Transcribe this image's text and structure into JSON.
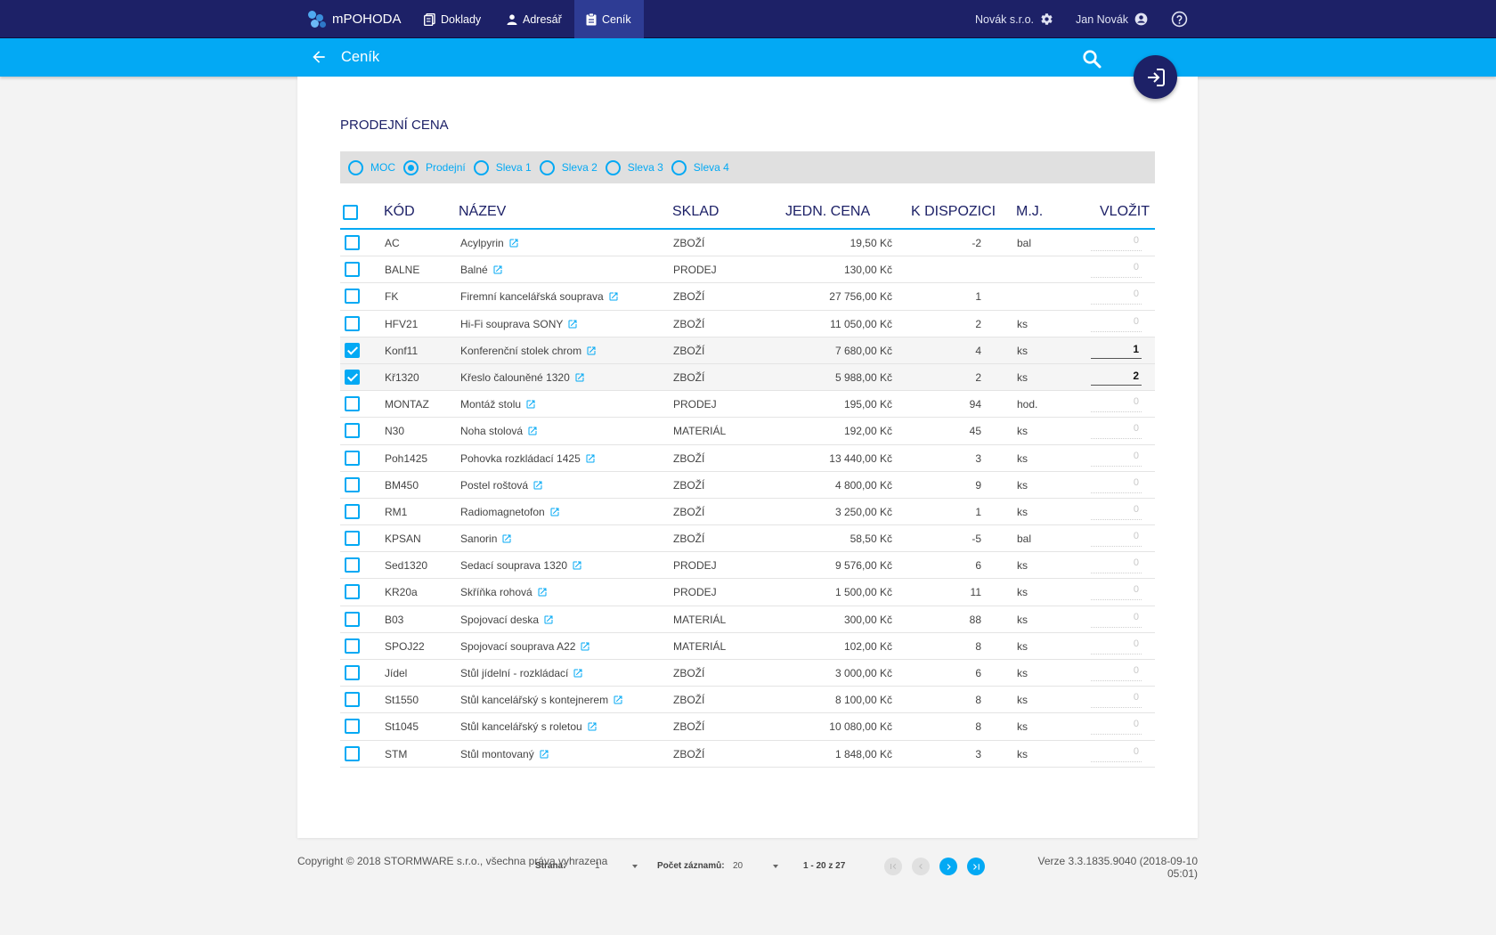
{
  "app": {
    "brand": "mPOHODA",
    "nav": [
      {
        "label": "Doklady",
        "icon": "documents-icon",
        "active": false
      },
      {
        "label": "Adresář",
        "icon": "person-icon",
        "active": false
      },
      {
        "label": "Ceník",
        "icon": "clipboard-icon",
        "active": true
      }
    ],
    "company": "Novák s.r.o.",
    "user": "Jan Novák"
  },
  "subheader": {
    "title": "Ceník"
  },
  "section_title": "PRODEJNÍ CENA",
  "price_types": [
    {
      "label": "MOC",
      "selected": false
    },
    {
      "label": "Prodejní",
      "selected": true
    },
    {
      "label": "Sleva 1",
      "selected": false
    },
    {
      "label": "Sleva 2",
      "selected": false
    },
    {
      "label": "Sleva 3",
      "selected": false
    },
    {
      "label": "Sleva 4",
      "selected": false
    }
  ],
  "table": {
    "headers": {
      "code": "KÓD",
      "name": "NÁZEV",
      "store": "SKLAD",
      "price": "JEDN. CENA",
      "available": "K DISPOZICI",
      "unit": "M.J.",
      "insert": "VLOŽIT"
    },
    "rows": [
      {
        "checked": false,
        "code": "AC",
        "name": "Acylpyrin",
        "store": "ZBOŽÍ",
        "price": "19,50 Kč",
        "available": "-2",
        "unit": "bal",
        "qty": "0"
      },
      {
        "checked": false,
        "code": "BALNE",
        "name": "Balné",
        "store": "PRODEJ",
        "price": "130,00 Kč",
        "available": "",
        "unit": "",
        "qty": "0"
      },
      {
        "checked": false,
        "code": "FK",
        "name": "Firemní kancelářská souprava",
        "store": "ZBOŽÍ",
        "price": "27 756,00 Kč",
        "available": "1",
        "unit": "",
        "qty": "0"
      },
      {
        "checked": false,
        "code": "HFV21",
        "name": "Hi-Fi souprava SONY",
        "store": "ZBOŽÍ",
        "price": "11 050,00 Kč",
        "available": "2",
        "unit": "ks",
        "qty": "0"
      },
      {
        "checked": true,
        "code": "Konf11",
        "name": "Konferenční stolek chrom",
        "store": "ZBOŽÍ",
        "price": "7 680,00 Kč",
        "available": "4",
        "unit": "ks",
        "qty": "1"
      },
      {
        "checked": true,
        "code": "Kř1320",
        "name": "Křeslo čalouněné 1320",
        "store": "ZBOŽÍ",
        "price": "5 988,00 Kč",
        "available": "2",
        "unit": "ks",
        "qty": "2"
      },
      {
        "checked": false,
        "code": "MONTAZ",
        "name": "Montáž stolu",
        "store": "PRODEJ",
        "price": "195,00 Kč",
        "available": "94",
        "unit": "hod.",
        "qty": "0"
      },
      {
        "checked": false,
        "code": "N30",
        "name": "Noha stolová",
        "store": "MATERIÁL",
        "price": "192,00 Kč",
        "available": "45",
        "unit": "ks",
        "qty": "0"
      },
      {
        "checked": false,
        "code": "Poh1425",
        "name": "Pohovka rozkládací 1425",
        "store": "ZBOŽÍ",
        "price": "13 440,00 Kč",
        "available": "3",
        "unit": "ks",
        "qty": "0"
      },
      {
        "checked": false,
        "code": "BM450",
        "name": "Postel roštová",
        "store": "ZBOŽÍ",
        "price": "4 800,00 Kč",
        "available": "9",
        "unit": "ks",
        "qty": "0"
      },
      {
        "checked": false,
        "code": "RM1",
        "name": "Radiomagnetofon",
        "store": "ZBOŽÍ",
        "price": "3 250,00 Kč",
        "available": "1",
        "unit": "ks",
        "qty": "0"
      },
      {
        "checked": false,
        "code": "KPSAN",
        "name": "Sanorin",
        "store": "ZBOŽÍ",
        "price": "58,50 Kč",
        "available": "-5",
        "unit": "bal",
        "qty": "0"
      },
      {
        "checked": false,
        "code": "Sed1320",
        "name": "Sedací souprava 1320",
        "store": "PRODEJ",
        "price": "9 576,00 Kč",
        "available": "6",
        "unit": "ks",
        "qty": "0"
      },
      {
        "checked": false,
        "code": "KR20a",
        "name": "Skříňka rohová",
        "store": "PRODEJ",
        "price": "1 500,00 Kč",
        "available": "11",
        "unit": "ks",
        "qty": "0"
      },
      {
        "checked": false,
        "code": "B03",
        "name": "Spojovací deska",
        "store": "MATERIÁL",
        "price": "300,00 Kč",
        "available": "88",
        "unit": "ks",
        "qty": "0"
      },
      {
        "checked": false,
        "code": "SPOJ22",
        "name": "Spojovací souprava A22",
        "store": "MATERIÁL",
        "price": "102,00 Kč",
        "available": "8",
        "unit": "ks",
        "qty": "0"
      },
      {
        "checked": false,
        "code": "Jídel",
        "name": "Stůl jídelní - rozkládací",
        "store": "ZBOŽÍ",
        "price": "3 000,00 Kč",
        "available": "6",
        "unit": "ks",
        "qty": "0"
      },
      {
        "checked": false,
        "code": "St1550",
        "name": "Stůl kancelářský s kontejnerem",
        "store": "ZBOŽÍ",
        "price": "8 100,00 Kč",
        "available": "8",
        "unit": "ks",
        "qty": "0"
      },
      {
        "checked": false,
        "code": "St1045",
        "name": "Stůl kancelářský s roletou",
        "store": "ZBOŽÍ",
        "price": "10 080,00 Kč",
        "available": "8",
        "unit": "ks",
        "qty": "0"
      },
      {
        "checked": false,
        "code": "STM",
        "name": "Stůl montovaný",
        "store": "ZBOŽÍ",
        "price": "1 848,00 Kč",
        "available": "3",
        "unit": "ks",
        "qty": "0"
      }
    ]
  },
  "pager": {
    "page_label": "Strana:",
    "page_value": "1",
    "records_label": "Počet záznamů:",
    "records_value": "20",
    "range": "1 - 20 z 27"
  },
  "footer": {
    "copyright": "Copyright © 2018 STORMWARE s.r.o., všechna práva vyhrazena",
    "version": "Verze 3.3.1835.9040 (2018-09-10 05:01)"
  }
}
